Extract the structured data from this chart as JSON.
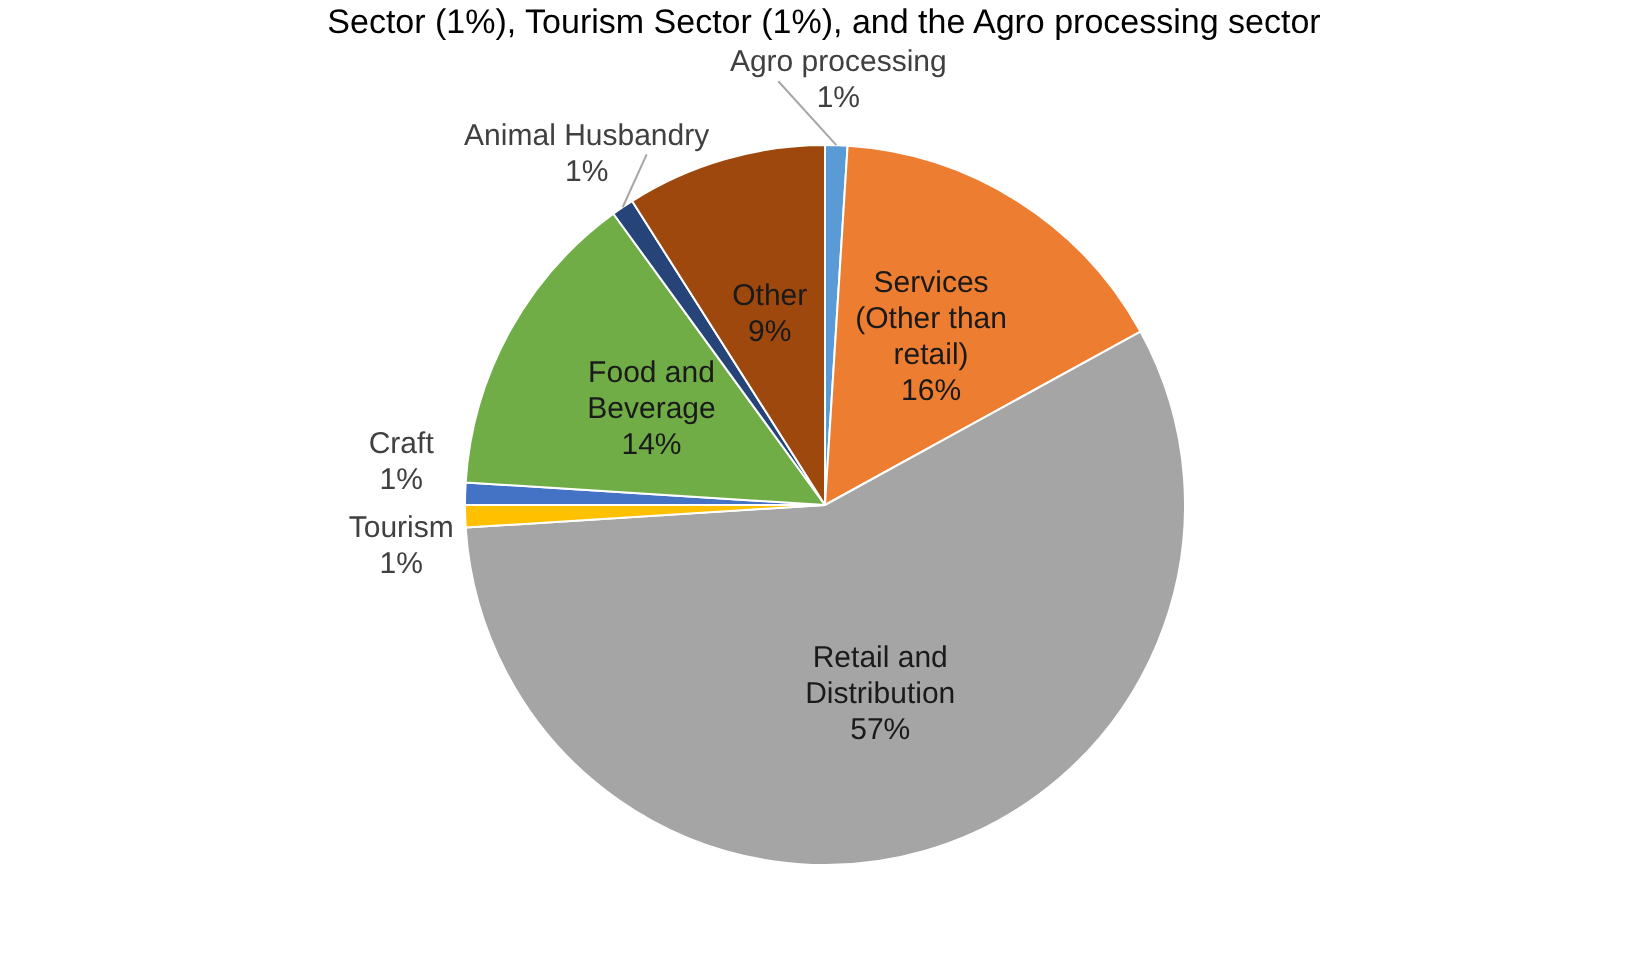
{
  "chart_data": {
    "type": "pie",
    "categories": [
      "Agro processing",
      "Services (Other than retail)",
      "Retail and Distribution",
      "Tourism",
      "Craft",
      "Food and Beverage",
      "Animal Husbandry",
      "Other"
    ],
    "values": [
      1,
      16,
      57,
      1,
      1,
      14,
      1,
      9
    ],
    "colors": [
      "#5b9bd5",
      "#ed7d31",
      "#a5a5a5",
      "#ffc000",
      "#4472c4",
      "#70ad47",
      "#264478",
      "#9e480e"
    ],
    "value_labels": [
      "1%",
      "16%",
      "57%",
      "1%",
      "1%",
      "14%",
      "1%",
      "9%"
    ],
    "annotations": [
      "Sector (1%), Tourism Sector (1%), and the Agro processing sector"
    ],
    "legend": false
  }
}
